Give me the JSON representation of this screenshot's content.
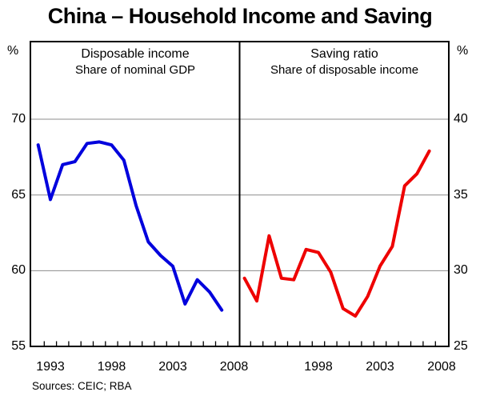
{
  "title": "China – Household Income and Saving",
  "footer": {
    "sources": "Sources: CEIC; RBA"
  },
  "chart_data": [
    {
      "type": "line",
      "panel": "left",
      "series_name": "Disposable income (share of nominal GDP)",
      "title": "Disposable income",
      "subtitle": "Share of nominal GDP",
      "unit": "%",
      "color": "#0000dd",
      "axis_side": "left",
      "ylim": [
        55,
        70
      ],
      "yticks": [
        55,
        60,
        65,
        70
      ],
      "x_labeled_ticks": [
        1993,
        1998,
        2003,
        2008
      ],
      "x_minor_tick_years": [
        1992,
        2008
      ],
      "grid": "horizontal",
      "legend": "none",
      "x": [
        1992,
        1993,
        1994,
        1995,
        1996,
        1997,
        1998,
        1999,
        2000,
        2001,
        2002,
        2003,
        2004,
        2005,
        2006,
        2007
      ],
      "values": [
        68.3,
        64.7,
        67.0,
        67.2,
        68.4,
        68.5,
        68.3,
        67.3,
        64.3,
        61.9,
        61.0,
        60.3,
        57.8,
        59.4,
        58.6,
        57.4
      ]
    },
    {
      "type": "line",
      "panel": "right",
      "series_name": "Saving ratio (share of disposable income)",
      "title": "Saving ratio",
      "subtitle": "Share of disposable income",
      "unit": "%",
      "color": "#ee0000",
      "axis_side": "right",
      "ylim": [
        25,
        40
      ],
      "yticks": [
        25,
        30,
        35,
        40
      ],
      "x_labeled_ticks": [
        1998,
        2003,
        2008
      ],
      "x_minor_tick_years": [
        1993,
        2008
      ],
      "grid": "horizontal",
      "legend": "none",
      "x": [
        1992,
        1993,
        1994,
        1995,
        1996,
        1997,
        1998,
        1999,
        2000,
        2001,
        2002,
        2003,
        2004,
        2005,
        2006,
        2007
      ],
      "values": [
        29.5,
        28.0,
        32.3,
        29.5,
        29.4,
        31.4,
        31.2,
        29.9,
        27.5,
        27.0,
        28.3,
        30.3,
        31.6,
        35.6,
        36.4,
        37.9
      ]
    }
  ],
  "style": {
    "grid_color": "#8c8c8c",
    "frame_color": "#000000"
  }
}
